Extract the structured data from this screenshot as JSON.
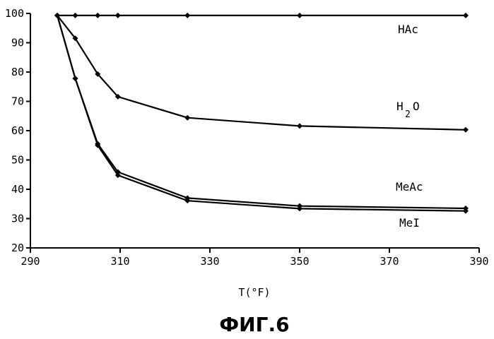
{
  "chart_data": {
    "type": "line",
    "title": "",
    "xlabel": "T(°F)",
    "ylabel": "",
    "xlim": [
      290,
      390
    ],
    "ylim": [
      20,
      100
    ],
    "xticks": [
      290,
      310,
      330,
      350,
      370,
      390
    ],
    "yticks": [
      20,
      30,
      40,
      50,
      60,
      70,
      80,
      90,
      100
    ],
    "grid": false,
    "series": [
      {
        "name": "HAc",
        "x": [
          296,
          300,
          305,
          309.5,
          325,
          350,
          387
        ],
        "y": [
          99.3,
          99.3,
          99.3,
          99.3,
          99.3,
          99.3,
          99.3
        ]
      },
      {
        "name": "H2O",
        "x": [
          296,
          300,
          305,
          309.5,
          325,
          350,
          387
        ],
        "y": [
          99.3,
          91.5,
          79.3,
          71.6,
          64.4,
          61.6,
          60.3
        ]
      },
      {
        "name": "MeAc",
        "x": [
          296,
          300,
          305,
          309.5,
          325,
          350,
          387
        ],
        "y": [
          99.3,
          77.8,
          55.5,
          45.9,
          37.0,
          34.3,
          33.5
        ]
      },
      {
        "name": "MeI",
        "x": [
          296,
          300,
          305,
          309.5,
          325,
          350,
          387
        ],
        "y": [
          99.3,
          77.8,
          55.0,
          44.8,
          36.1,
          33.4,
          32.6
        ]
      }
    ],
    "labels": {
      "hac": "HAc",
      "h2o_main": "H",
      "h2o_sub": "2",
      "h2o_tail": "O",
      "meac": "MeAc",
      "mei": "MeI"
    }
  },
  "caption": "ФИГ.6",
  "colors": {
    "line": "#000000",
    "background": "#ffffff"
  }
}
